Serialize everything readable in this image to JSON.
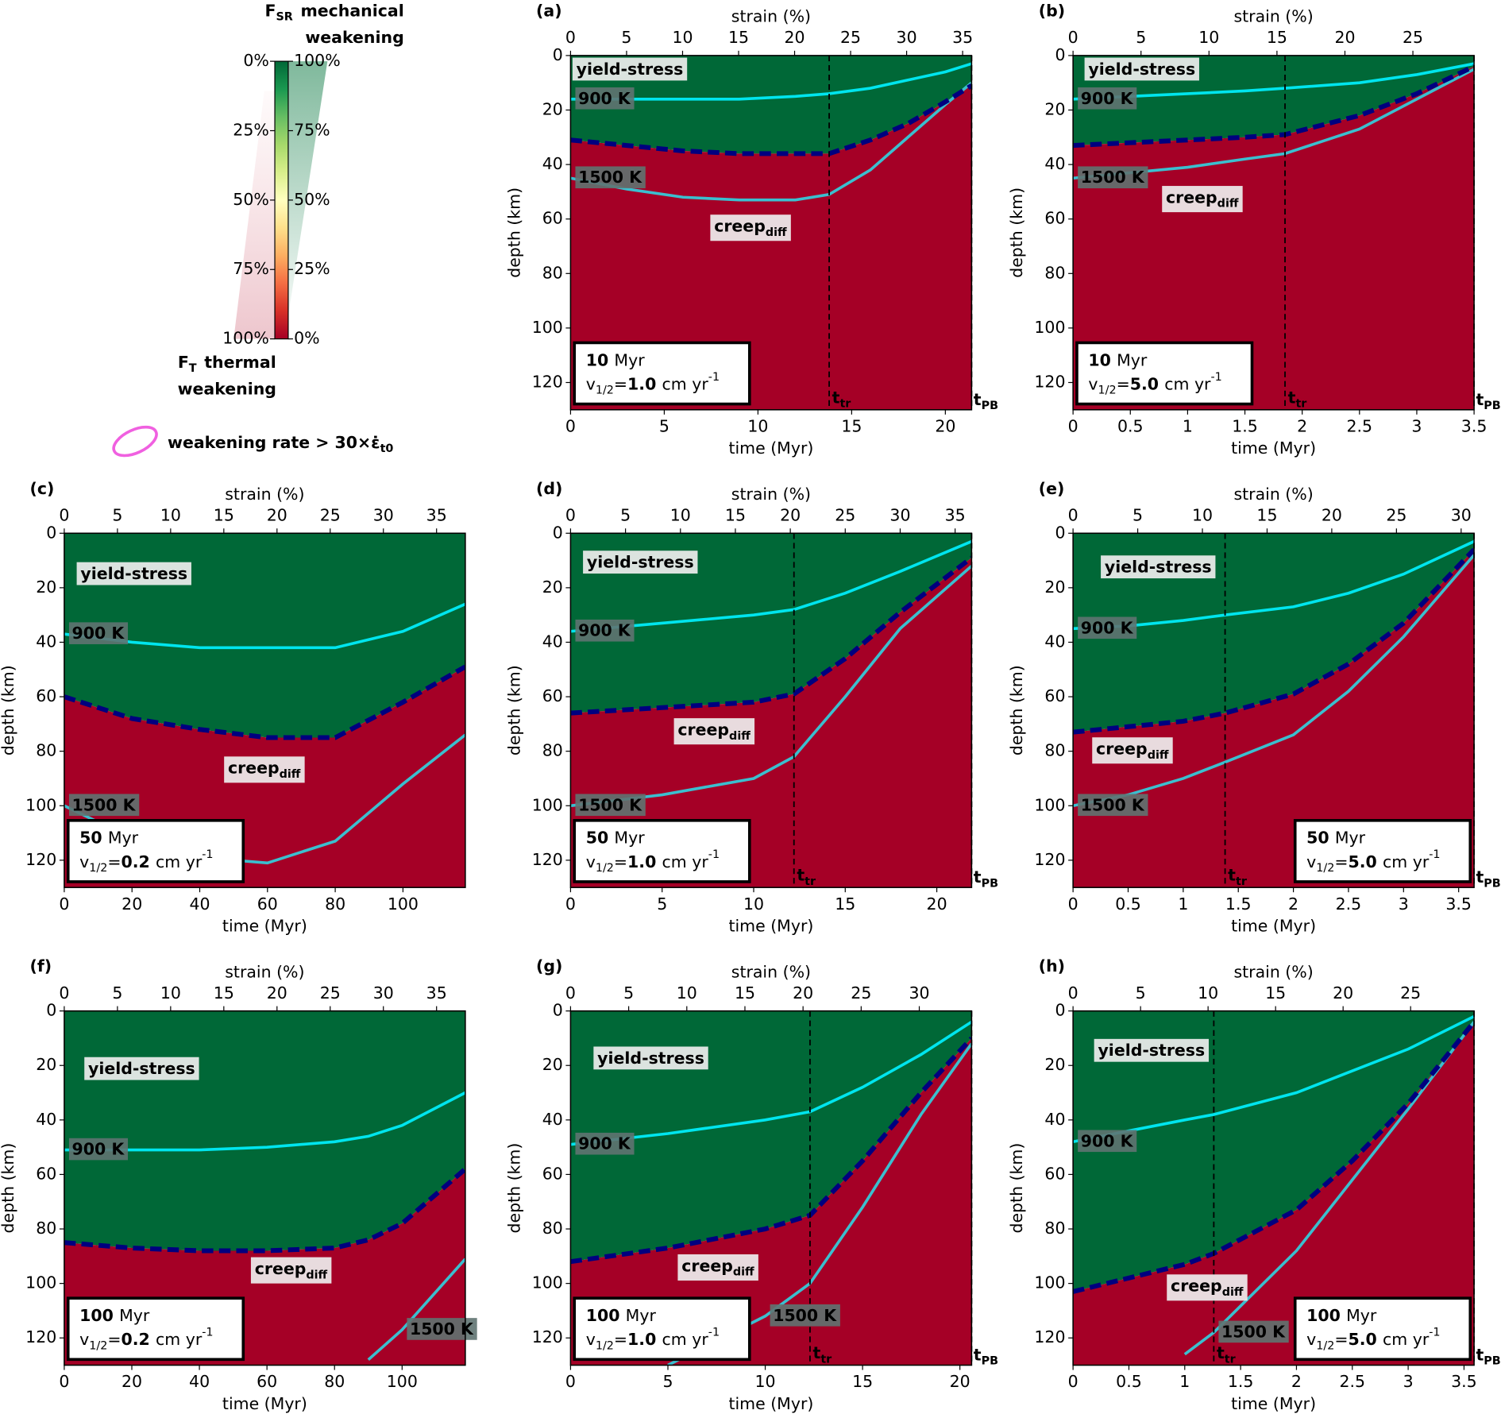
{
  "chart_data": [
    {
      "type": "area",
      "label": "(a)",
      "xlabel": "time (Myr)",
      "x2label": "strain (%)",
      "ylabel": "depth (km)",
      "xlim": [
        0,
        21.4
      ],
      "xticks": [
        0,
        5,
        10,
        15,
        20
      ],
      "x2lim": [
        0,
        35.8
      ],
      "x2ticks": [
        0,
        5,
        10,
        15,
        20,
        25,
        30,
        35
      ],
      "ylim": [
        130,
        0
      ],
      "yticks": [
        0,
        20,
        40,
        60,
        80,
        100,
        120
      ],
      "x": [
        0,
        3,
        6,
        9,
        12,
        13.8,
        16,
        18,
        20,
        21.4
      ],
      "series": [
        {
          "name": "yield-stress",
          "color": "#006837",
          "values": [
            31,
            33,
            35,
            36,
            36,
            36,
            31,
            25,
            17,
            11
          ]
        },
        {
          "name": "900 K",
          "color": "#00e5ee",
          "values": [
            16,
            16,
            16,
            16,
            15,
            14,
            12,
            9,
            6,
            3
          ]
        },
        {
          "name": "1500 K",
          "color": "#3bbfcf",
          "values": [
            45,
            49,
            52,
            53,
            53,
            51,
            42,
            30,
            18,
            10
          ]
        }
      ],
      "creep_region": {
        "name": "creep",
        "subscript": "diff",
        "color": "#a50026"
      },
      "info": {
        "age": 10,
        "age_unit": "Myr",
        "v": "v",
        "v_sub": "1/2",
        "eq": "=",
        "velocity": "1.0",
        "unit": "cm yr",
        "unit_sup": "-1"
      },
      "t_tr": {
        "value": 13.8,
        "label": "t",
        "sub": "tr"
      },
      "t_PB": {
        "label": "t",
        "sub": "PB"
      }
    },
    {
      "type": "area",
      "label": "(b)",
      "xlabel": "time (Myr)",
      "x2label": "strain (%)",
      "ylabel": "depth (km)",
      "xlim": [
        0,
        3.5
      ],
      "xticks": [
        0,
        0.5,
        1,
        1.5,
        2,
        2.5,
        3,
        3.5
      ],
      "x2lim": [
        0,
        29.5
      ],
      "x2ticks": [
        0,
        5,
        10,
        15,
        20,
        25
      ],
      "ylim": [
        130,
        0
      ],
      "yticks": [
        0,
        20,
        40,
        60,
        80,
        100,
        120
      ],
      "x": [
        0,
        0.5,
        1,
        1.5,
        1.85,
        2.5,
        3,
        3.5
      ],
      "series": [
        {
          "name": "yield-stress",
          "color": "#006837",
          "values": [
            33,
            32,
            31,
            30,
            29,
            22,
            14,
            4
          ]
        },
        {
          "name": "900 K",
          "color": "#00e5ee",
          "values": [
            16,
            15,
            14,
            13,
            12,
            10,
            7,
            3
          ]
        },
        {
          "name": "1500 K",
          "color": "#3bbfcf",
          "values": [
            45,
            43,
            41,
            38,
            36,
            27,
            16,
            5
          ]
        }
      ],
      "creep_region": {
        "name": "creep",
        "subscript": "diff",
        "color": "#a50026"
      },
      "info": {
        "age": 10,
        "age_unit": "Myr",
        "v": "v",
        "v_sub": "1/2",
        "eq": "=",
        "velocity": "5.0",
        "unit": "cm yr",
        "unit_sup": "-1"
      },
      "t_tr": {
        "value": 1.85,
        "label": "t",
        "sub": "tr"
      },
      "t_PB": {
        "label": "t",
        "sub": "PB"
      }
    },
    {
      "type": "area",
      "label": "(c)",
      "xlabel": "time (Myr)",
      "x2label": "strain (%)",
      "ylabel": "depth (km)",
      "xlim": [
        0,
        118.4
      ],
      "xticks": [
        0,
        20,
        40,
        60,
        80,
        100
      ],
      "x2lim": [
        0,
        37.7
      ],
      "x2ticks": [
        0,
        5,
        10,
        15,
        20,
        25,
        30,
        35
      ],
      "ylim": [
        130,
        0
      ],
      "yticks": [
        0,
        20,
        40,
        60,
        80,
        100,
        120
      ],
      "x": [
        0,
        20,
        40,
        60,
        80,
        100,
        118.4
      ],
      "series": [
        {
          "name": "yield-stress",
          "color": "#006837",
          "values": [
            60,
            68,
            72,
            75,
            75,
            62,
            49
          ]
        },
        {
          "name": "900 K",
          "color": "#00e5ee",
          "values": [
            37,
            40,
            42,
            42,
            42,
            36,
            26
          ]
        },
        {
          "name": "1500 K",
          "color": "#3bbfcf",
          "values": [
            100,
            112,
            119,
            121,
            113,
            92,
            74
          ]
        }
      ],
      "creep_region": {
        "name": "creep",
        "subscript": "diff",
        "color": "#a50026"
      },
      "info": {
        "age": 50,
        "age_unit": "Myr",
        "v": "v",
        "v_sub": "1/2",
        "eq": "=",
        "velocity": "0.2",
        "unit": "cm yr",
        "unit_sup": "-1"
      }
    },
    {
      "type": "area",
      "label": "(d)",
      "xlabel": "time (Myr)",
      "x2label": "strain (%)",
      "ylabel": "depth (km)",
      "xlim": [
        0,
        21.9
      ],
      "xticks": [
        0,
        5,
        10,
        15,
        20
      ],
      "x2lim": [
        0,
        36.5
      ],
      "x2ticks": [
        0,
        5,
        10,
        15,
        20,
        25,
        30,
        35
      ],
      "ylim": [
        130,
        0
      ],
      "yticks": [
        0,
        20,
        40,
        60,
        80,
        100,
        120
      ],
      "x": [
        0,
        5,
        10,
        12.2,
        15,
        18,
        21.9
      ],
      "series": [
        {
          "name": "yield-stress",
          "color": "#006837",
          "values": [
            66,
            64,
            62,
            59,
            46,
            29,
            9
          ]
        },
        {
          "name": "900 K",
          "color": "#00e5ee",
          "values": [
            36,
            33,
            30,
            28,
            22,
            14,
            3
          ]
        },
        {
          "name": "1500 K",
          "color": "#3bbfcf",
          "values": [
            100,
            96,
            90,
            82,
            60,
            35,
            12
          ]
        }
      ],
      "creep_region": {
        "name": "creep",
        "subscript": "diff",
        "color": "#a50026"
      },
      "info": {
        "age": 50,
        "age_unit": "Myr",
        "v": "v",
        "v_sub": "1/2",
        "eq": "=",
        "velocity": "1.0",
        "unit": "cm yr",
        "unit_sup": "-1"
      },
      "t_tr": {
        "value": 12.2,
        "label": "t",
        "sub": "tr"
      },
      "t_PB": {
        "label": "t",
        "sub": "PB"
      }
    },
    {
      "type": "area",
      "label": "(e)",
      "xlabel": "time (Myr)",
      "x2label": "strain (%)",
      "ylabel": "depth (km)",
      "xlim": [
        0,
        3.64
      ],
      "xticks": [
        0,
        0.5,
        1,
        1.5,
        2,
        2.5,
        3,
        3.5
      ],
      "x2lim": [
        0,
        31
      ],
      "x2ticks": [
        0,
        5,
        10,
        15,
        20,
        25,
        30
      ],
      "ylim": [
        130,
        0
      ],
      "yticks": [
        0,
        20,
        40,
        60,
        80,
        100,
        120
      ],
      "x": [
        0,
        0.5,
        1,
        1.38,
        2,
        2.5,
        3,
        3.64
      ],
      "series": [
        {
          "name": "yield-stress",
          "color": "#006837",
          "values": [
            73,
            71,
            69,
            66,
            59,
            48,
            33,
            6
          ]
        },
        {
          "name": "900 K",
          "color": "#00e5ee",
          "values": [
            35,
            34,
            32,
            30,
            27,
            22,
            15,
            3
          ]
        },
        {
          "name": "1500 K",
          "color": "#3bbfcf",
          "values": [
            100,
            96,
            90,
            84,
            74,
            58,
            38,
            8
          ]
        }
      ],
      "creep_region": {
        "name": "creep",
        "subscript": "diff",
        "color": "#a50026"
      },
      "info": {
        "age": 50,
        "age_unit": "Myr",
        "v": "v",
        "v_sub": "1/2",
        "eq": "=",
        "velocity": "5.0",
        "unit": "cm yr",
        "unit_sup": "-1"
      },
      "t_tr": {
        "value": 1.38,
        "label": "t",
        "sub": "tr"
      },
      "t_PB": {
        "label": "t",
        "sub": "PB"
      }
    },
    {
      "type": "area",
      "label": "(f)",
      "xlabel": "time (Myr)",
      "x2label": "strain (%)",
      "ylabel": "depth (km)",
      "xlim": [
        0,
        118.7
      ],
      "xticks": [
        0,
        20,
        40,
        60,
        80,
        100
      ],
      "x2lim": [
        0,
        37.7
      ],
      "x2ticks": [
        0,
        5,
        10,
        15,
        20,
        25,
        30,
        35
      ],
      "ylim": [
        130,
        0
      ],
      "yticks": [
        0,
        20,
        40,
        60,
        80,
        100,
        120
      ],
      "x": [
        0,
        20,
        40,
        60,
        80,
        90,
        100,
        118.7
      ],
      "series": [
        {
          "name": "yield-stress",
          "color": "#006837",
          "values": [
            85,
            87,
            88,
            88,
            87,
            84,
            78,
            58
          ]
        },
        {
          "name": "900 K",
          "color": "#00e5ee",
          "values": [
            51,
            51,
            51,
            50,
            48,
            46,
            42,
            30
          ]
        },
        {
          "name": "1500 K",
          "color": "#3bbfcf",
          "values": [
            null,
            null,
            null,
            null,
            null,
            128,
            117,
            91
          ]
        }
      ],
      "creep_region": {
        "name": "creep",
        "subscript": "diff",
        "color": "#a50026"
      },
      "info": {
        "age": 100,
        "age_unit": "Myr",
        "v": "v",
        "v_sub": "1/2",
        "eq": "=",
        "velocity": "0.2",
        "unit": "cm yr",
        "unit_sup": "-1"
      }
    },
    {
      "type": "area",
      "label": "(g)",
      "xlabel": "time (Myr)",
      "x2label": "strain (%)",
      "ylabel": "depth (km)",
      "xlim": [
        0,
        20.6
      ],
      "xticks": [
        0,
        5,
        10,
        15,
        20
      ],
      "x2lim": [
        0,
        34.5
      ],
      "x2ticks": [
        0,
        5,
        10,
        15,
        20,
        25,
        30
      ],
      "ylim": [
        130,
        0
      ],
      "yticks": [
        0,
        20,
        40,
        60,
        80,
        100,
        120
      ],
      "x": [
        0,
        5,
        10,
        12.3,
        15,
        18,
        20.6
      ],
      "series": [
        {
          "name": "yield-stress",
          "color": "#006837",
          "values": [
            92,
            87,
            80,
            75,
            55,
            30,
            10
          ]
        },
        {
          "name": "900 K",
          "color": "#00e5ee",
          "values": [
            49,
            45,
            40,
            37,
            28,
            16,
            4
          ]
        },
        {
          "name": "1500 K",
          "color": "#3bbfcf",
          "values": [
            null,
            130,
            112,
            100,
            72,
            38,
            12
          ]
        }
      ],
      "creep_region": {
        "name": "creep",
        "subscript": "diff",
        "color": "#a50026"
      },
      "info": {
        "age": 100,
        "age_unit": "Myr",
        "v": "v",
        "v_sub": "1/2",
        "eq": "=",
        "velocity": "1.0",
        "unit": "cm yr",
        "unit_sup": "-1"
      },
      "t_tr": {
        "value": 12.3,
        "label": "t",
        "sub": "tr"
      },
      "t_PB": {
        "label": "t",
        "sub": "PB"
      }
    },
    {
      "type": "area",
      "label": "(h)",
      "xlabel": "time (Myr)",
      "x2label": "strain (%)",
      "ylabel": "depth (km)",
      "xlim": [
        0,
        3.59
      ],
      "xticks": [
        0,
        0.5,
        1,
        1.5,
        2,
        2.5,
        3,
        3.5
      ],
      "x2lim": [
        0,
        29.7
      ],
      "x2ticks": [
        0,
        5,
        10,
        15,
        20,
        25
      ],
      "ylim": [
        130,
        0
      ],
      "yticks": [
        0,
        20,
        40,
        60,
        80,
        100,
        120
      ],
      "x": [
        0,
        0.5,
        1,
        1.26,
        2,
        2.5,
        3,
        3.59
      ],
      "series": [
        {
          "name": "yield-stress",
          "color": "#006837",
          "values": [
            103,
            98,
            93,
            89,
            73,
            55,
            34,
            4
          ]
        },
        {
          "name": "900 K",
          "color": "#00e5ee",
          "values": [
            48,
            44,
            40,
            38,
            30,
            22,
            14,
            2
          ]
        },
        {
          "name": "1500 K",
          "color": "#3bbfcf",
          "values": [
            null,
            null,
            126,
            118,
            88,
            62,
            36,
            4
          ]
        }
      ],
      "creep_region": {
        "name": "creep",
        "subscript": "diff",
        "color": "#a50026"
      },
      "info": {
        "age": 100,
        "age_unit": "Myr",
        "v": "v",
        "v_sub": "1/2",
        "eq": "=",
        "velocity": "5.0",
        "unit": "cm yr",
        "unit_sup": "-1"
      },
      "t_tr": {
        "value": 1.26,
        "label": "t",
        "sub": "tr"
      },
      "t_PB": {
        "label": "t",
        "sub": "PB"
      }
    }
  ],
  "colorbar": {
    "mech_symbol": "F",
    "mech_sub": "SR",
    "mech_title": "mechanical",
    "mech_title2": "weakening",
    "therm_symbol": "F",
    "therm_sub": "T",
    "therm_title": "thermal",
    "therm_title2": "weakening",
    "lim": [
      0,
      100
    ],
    "thermal_ticks": [
      {
        "value": 0,
        "label": "0%"
      },
      {
        "value": 25,
        "label": "25%"
      },
      {
        "value": 50,
        "label": "50%"
      },
      {
        "value": 75,
        "label": "75%"
      },
      {
        "value": 100,
        "label": "100%"
      }
    ],
    "mechanical_ticks": [
      {
        "value": 100,
        "label": "100%"
      },
      {
        "value": 75,
        "label": "75%"
      },
      {
        "value": 50,
        "label": "50%"
      },
      {
        "value": 25,
        "label": "25%"
      },
      {
        "value": 0,
        "label": "0%"
      }
    ]
  },
  "legend": {
    "text": "weakening rate > 30×",
    "symbol": "ε̇",
    "sub": "t0"
  }
}
